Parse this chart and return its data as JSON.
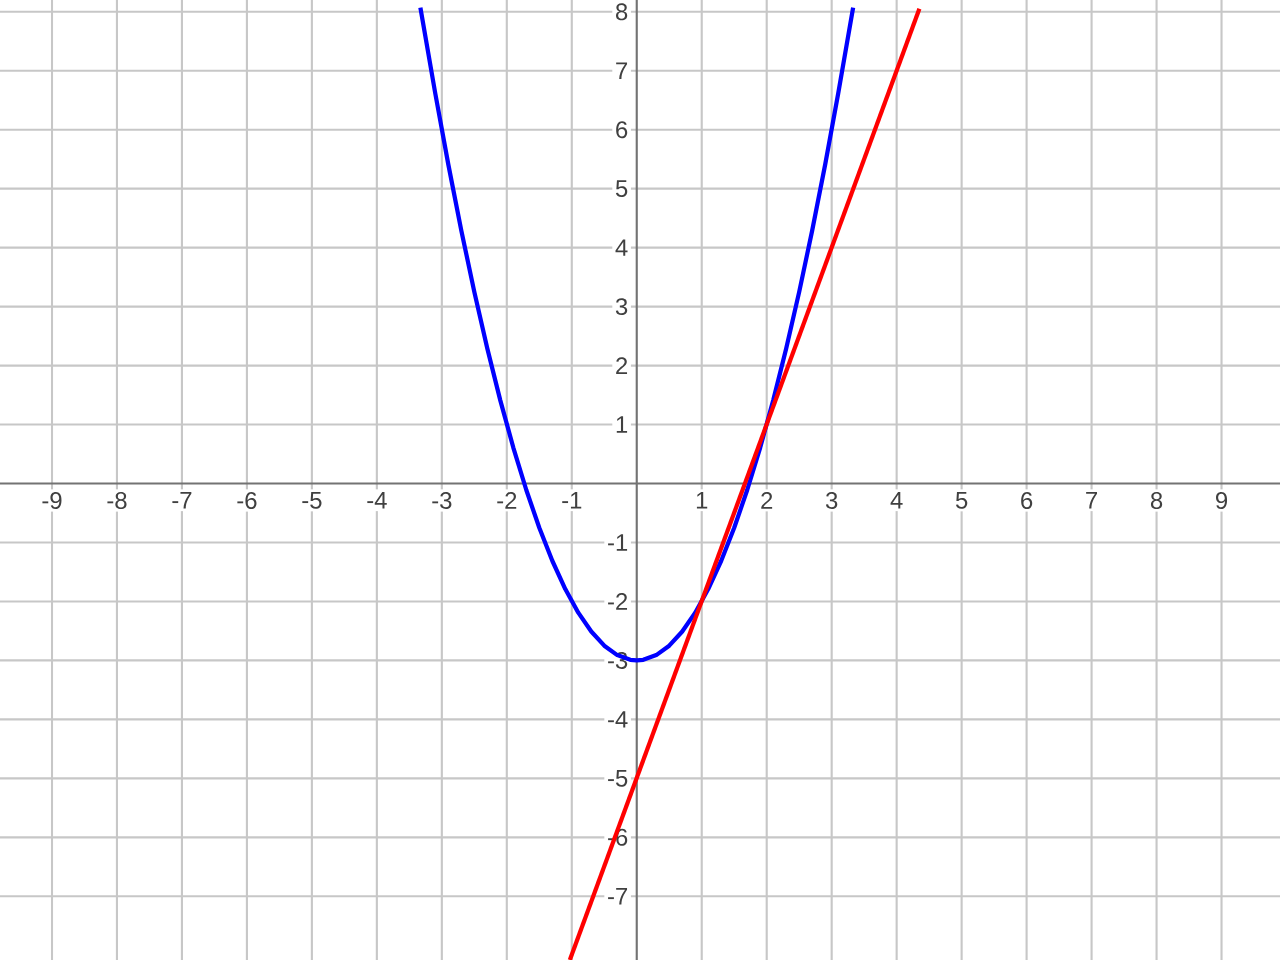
{
  "chart_data": {
    "type": "line",
    "xlim": [
      -9.8,
      9.9
    ],
    "ylim": [
      -8.08,
      8.2
    ],
    "xticks": [
      -9,
      -8,
      -7,
      -6,
      -5,
      -4,
      -3,
      -2,
      -1,
      1,
      2,
      3,
      4,
      5,
      6,
      7,
      8,
      9
    ],
    "yticks": [
      -7,
      -6,
      -5,
      -4,
      -3,
      -2,
      -1,
      1,
      2,
      3,
      4,
      5,
      6,
      7,
      8
    ],
    "grid": true,
    "marker": "none",
    "line_style": "solid",
    "series": [
      {
        "color": "#0000ff",
        "x": [
          -3.33,
          -3.1,
          -2.9,
          -2.7,
          -2.5,
          -2.3,
          -2.1,
          -1.9,
          -1.7,
          -1.5,
          -1.3,
          -1.1,
          -0.9,
          -0.7,
          -0.5,
          -0.3,
          -0.1,
          0,
          0.1,
          0.3,
          0.5,
          0.7,
          0.9,
          1.1,
          1.3,
          1.5,
          1.7,
          1.9,
          2.1,
          2.3,
          2.5,
          2.7,
          2.9,
          3.1,
          3.33
        ],
        "values": [
          8.07,
          6.61,
          5.41,
          4.29,
          3.25,
          2.29,
          1.41,
          0.61,
          -0.11,
          -0.75,
          -1.31,
          -1.79,
          -2.19,
          -2.51,
          -2.75,
          -2.91,
          -2.99,
          -3,
          -2.99,
          -2.91,
          -2.75,
          -2.51,
          -2.19,
          -1.79,
          -1.31,
          -0.75,
          -0.11,
          0.61,
          1.41,
          2.29,
          3.25,
          4.29,
          5.41,
          6.61,
          8.07
        ]
      },
      {
        "color": "#ff0000",
        "x": [
          -1.03,
          4.35
        ],
        "values": [
          -8.08,
          8.05
        ]
      }
    ]
  }
}
